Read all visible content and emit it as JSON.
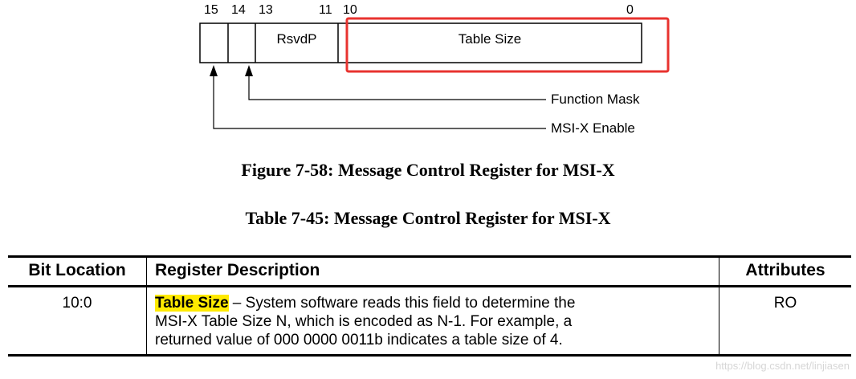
{
  "register": {
    "bits": {
      "b15": "15",
      "b14": "14",
      "b13": "13",
      "b11": "11",
      "b10": "10",
      "b0": "0"
    },
    "fields": {
      "rsvdp": "RsvdP",
      "table_size": "Table Size"
    },
    "callouts": {
      "function_mask": "Function Mask",
      "msix_enable": "MSI-X Enable"
    },
    "highlight_color": "#e8332f"
  },
  "figure_caption": "Figure 7-58:  Message Control Register for MSI-X",
  "table_caption": "Table 7-45:  Message Control Register for MSI-X",
  "table": {
    "headers": {
      "bit_location": "Bit Location",
      "description": "Register Description",
      "attributes": "Attributes"
    },
    "rows": [
      {
        "bit_location": "10:0",
        "field_name": "Table Size",
        "dash": " – ",
        "description_lines": [
          "System software reads this field to determine the",
          "MSI-X Table Size N, which is encoded as N-1.  For example, a",
          "returned value of 000 0000 0011b indicates a table size of 4."
        ],
        "attributes": "RO"
      }
    ]
  },
  "watermark": "https://blog.csdn.net/linjiasen"
}
